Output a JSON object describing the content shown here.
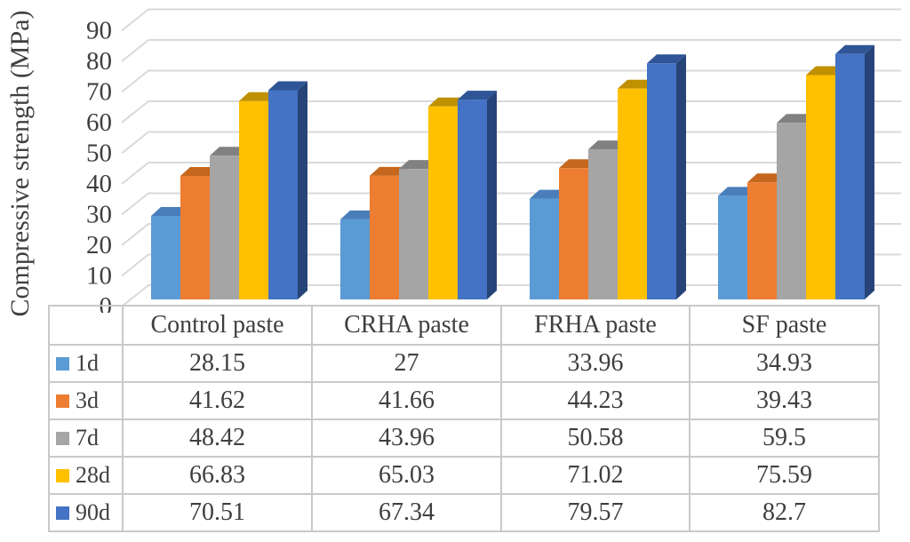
{
  "chart_data": {
    "type": "bar",
    "style": "3d-clustered-column-with-data-table",
    "title": "",
    "xlabel": "",
    "ylabel": "Compressive strength (MPa)",
    "categories": [
      "Control paste",
      "CRHA paste",
      "FRHA paste",
      "SF paste"
    ],
    "series": [
      {
        "name": "1d",
        "values": [
          28.15,
          27,
          33.96,
          34.93
        ],
        "color": "#5B9BD5",
        "top_color": "#4A7EBB",
        "side_color": "#3A6494"
      },
      {
        "name": "3d",
        "values": [
          41.62,
          41.66,
          44.23,
          39.43
        ],
        "color": "#ED7D31",
        "top_color": "#C5671C",
        "side_color": "#9C5220"
      },
      {
        "name": "7d",
        "values": [
          48.42,
          43.96,
          50.58,
          59.5
        ],
        "color": "#A5A5A5",
        "top_color": "#818181",
        "side_color": "#6E6E6E"
      },
      {
        "name": "28d",
        "values": [
          66.83,
          65.03,
          71.02,
          75.59
        ],
        "color": "#FFC000",
        "top_color": "#BF9000",
        "side_color": "#8F6C00"
      },
      {
        "name": "90d",
        "values": [
          70.51,
          67.34,
          79.57,
          82.7
        ],
        "color": "#4472C4",
        "top_color": "#2F5597",
        "side_color": "#264478"
      }
    ],
    "ylim": [
      0,
      90
    ],
    "ytick_step": 10,
    "yticks": [
      "0",
      "10",
      "20",
      "30",
      "40",
      "50",
      "60",
      "70",
      "80",
      "90"
    ],
    "grid": "horizontal",
    "legend_position": "table-left-column"
  },
  "colors": {
    "gridline": "#D9D9D9",
    "table_border": "#C9C9C9",
    "text": "#3F3F3F",
    "background": "#FFFFFF"
  }
}
